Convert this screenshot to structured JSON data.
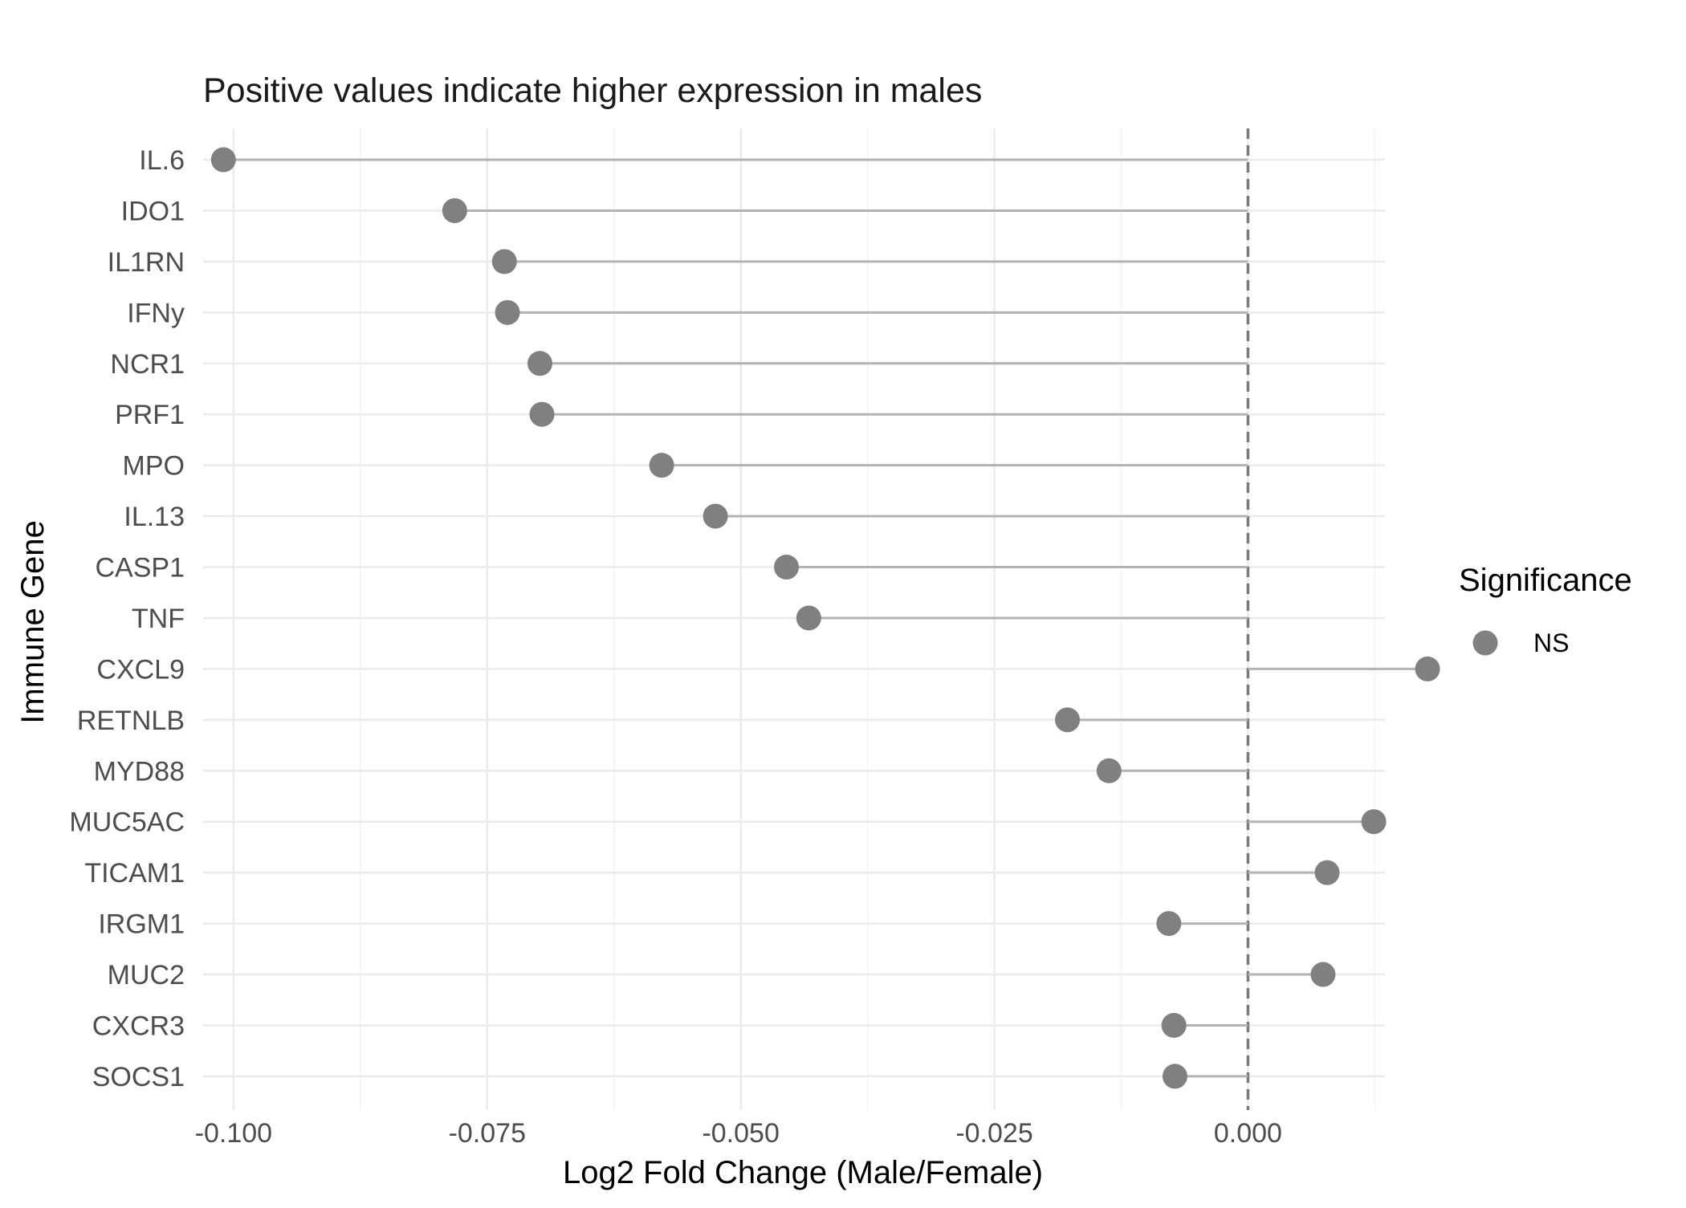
{
  "chart_data": {
    "type": "lollipop",
    "title": "",
    "subtitle": "Positive values indicate higher expression in males",
    "xlabel": "Log2 Fold Change (Male/Female)",
    "ylabel": "Immune Gene",
    "xlim": [
      -0.103,
      0.0135
    ],
    "x_ticks": [
      -0.1,
      -0.075,
      -0.05,
      -0.025,
      0.0
    ],
    "x_tick_labels": [
      "-0.100",
      "-0.075",
      "-0.050",
      "-0.025",
      "0.000"
    ],
    "reference_line": 0.0,
    "grid": true,
    "point_color": "#808080",
    "stem_color": "#b3b3b3",
    "legend": {
      "title": "Significance",
      "position": "right",
      "entries": [
        {
          "label": "NS",
          "color": "#808080"
        }
      ]
    },
    "categories": [
      "IL.6",
      "IDO1",
      "IL1RN",
      "IFNy",
      "NCR1",
      "PRF1",
      "MPO",
      "IL.13",
      "CASP1",
      "TNF",
      "CXCL9",
      "RETNLB",
      "MYD88",
      "MUC5AC",
      "TICAM1",
      "IRGM1",
      "MUC2",
      "CXCR3",
      "SOCS1"
    ],
    "values": [
      -0.101,
      -0.0782,
      -0.0733,
      -0.073,
      -0.0698,
      -0.0696,
      -0.0578,
      -0.0525,
      -0.0455,
      -0.0433,
      0.0177,
      -0.0178,
      -0.0137,
      0.0124,
      0.0078,
      -0.0078,
      0.0074,
      -0.0073,
      -0.0072
    ],
    "significance": [
      "NS",
      "NS",
      "NS",
      "NS",
      "NS",
      "NS",
      "NS",
      "NS",
      "NS",
      "NS",
      "NS",
      "NS",
      "NS",
      "NS",
      "NS",
      "NS",
      "NS",
      "NS",
      "NS"
    ]
  }
}
